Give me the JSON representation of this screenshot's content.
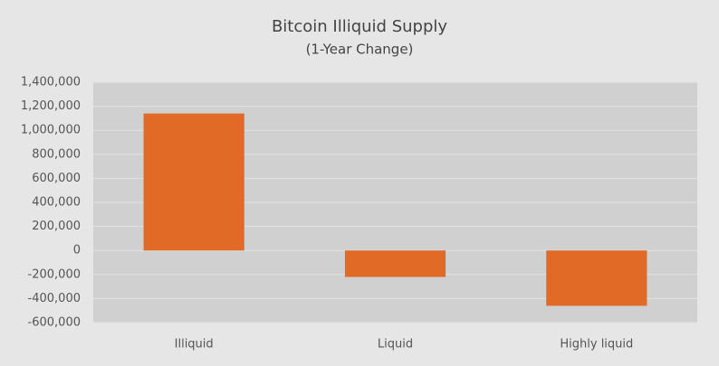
{
  "chart_data": {
    "type": "bar",
    "title": "Bitcoin Illiquid Supply",
    "subtitle": "(1-Year Change)",
    "categories": [
      "Illiquid",
      "Liquid",
      "Highly liquid"
    ],
    "values": [
      1140000,
      -220000,
      -460000
    ],
    "color": "#e06a26",
    "ylim": [
      -600000,
      1400000
    ],
    "yticks": [
      {
        "value": -600000,
        "label": "-600,000"
      },
      {
        "value": -400000,
        "label": "-400,000"
      },
      {
        "value": -200000,
        "label": "-200,000"
      },
      0,
      {
        "value": 200000,
        "label": "200,000"
      },
      {
        "value": 400000,
        "label": "400,000"
      },
      {
        "value": 600000,
        "label": "600,000"
      },
      {
        "value": 800000,
        "label": "800,000"
      },
      {
        "value": 1000000,
        "label": "1,000,000"
      },
      {
        "value": 1200000,
        "label": "1,200,000"
      },
      {
        "value": 1400000,
        "label": "1,400,000"
      }
    ],
    "grid": true
  }
}
